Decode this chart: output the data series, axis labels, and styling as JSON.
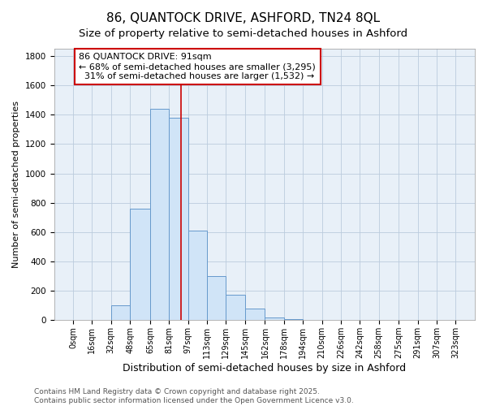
{
  "title_line1": "86, QUANTOCK DRIVE, ASHFORD, TN24 8QL",
  "title_line2": "Size of property relative to semi-detached houses in Ashford",
  "xlabel": "Distribution of semi-detached houses by size in Ashford",
  "ylabel": "Number of semi-detached properties",
  "footnote": "Contains HM Land Registry data © Crown copyright and database right 2025.\nContains public sector information licensed under the Open Government Licence v3.0.",
  "bar_edges": [
    0,
    16,
    32,
    48,
    65,
    81,
    97,
    113,
    129,
    145,
    162,
    178,
    194,
    210,
    226,
    242,
    258,
    275,
    291,
    307,
    323
  ],
  "bar_heights": [
    0,
    2,
    100,
    760,
    1440,
    1380,
    610,
    300,
    175,
    80,
    20,
    5,
    2,
    0,
    0,
    0,
    0,
    0,
    0,
    0
  ],
  "bar_color": "#d0e4f7",
  "bar_edgecolor": "#6699cc",
  "bar_linewidth": 0.7,
  "red_line_x": 91,
  "red_line_color": "#cc0000",
  "annotation_text": "86 QUANTOCK DRIVE: 91sqm\n← 68% of semi-detached houses are smaller (3,295)\n  31% of semi-detached houses are larger (1,532) →",
  "annotation_box_color": "#ffffff",
  "annotation_box_edgecolor": "#cc0000",
  "ylim": [
    0,
    1850
  ],
  "yticks": [
    0,
    200,
    400,
    600,
    800,
    1000,
    1200,
    1400,
    1600,
    1800
  ],
  "tick_labels": [
    "0sqm",
    "16sqm",
    "32sqm",
    "48sqm",
    "65sqm",
    "81sqm",
    "97sqm",
    "113sqm",
    "129sqm",
    "145sqm",
    "162sqm",
    "178sqm",
    "194sqm",
    "210sqm",
    "226sqm",
    "242sqm",
    "258sqm",
    "275sqm",
    "291sqm",
    "307sqm",
    "323sqm"
  ],
  "grid_color": "#bbccdd",
  "fig_bg_color": "#ffffff",
  "plot_bg_color": "#e8f0f8",
  "title_fontsize": 11,
  "subtitle_fontsize": 9.5,
  "tick_fontsize": 7,
  "xlabel_fontsize": 9,
  "ylabel_fontsize": 8,
  "annot_fontsize": 8,
  "footnote_fontsize": 6.5
}
